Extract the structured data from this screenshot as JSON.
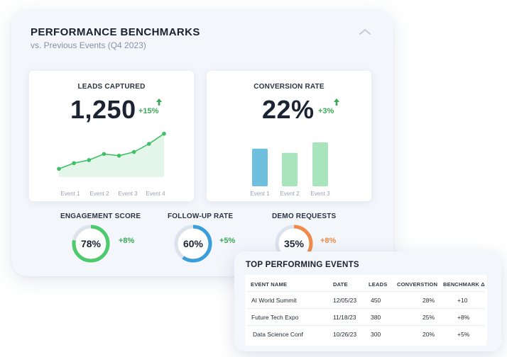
{
  "panel": {
    "title": "PERFORMANCE BENCHMARKS",
    "subtitle": "vs. Previous Events (Q4 2023)"
  },
  "icons": {
    "collapse": "chevron-up-icon",
    "trend": "arrow-up-icon"
  },
  "colors": {
    "positive": "#3aa957",
    "green_line": "#3fbf66",
    "blue_bar": "#6fc0df",
    "green_bar": "#a8e4bc",
    "gauge_green": "#4ccb6d",
    "gauge_blue": "#3a9fd9",
    "gauge_orange": "#f08a4b",
    "gauge_track": "#dde3ec"
  },
  "leads": {
    "title": "LEADS CAPTURED",
    "value": "1,250",
    "delta": "+15%"
  },
  "conversion": {
    "title": "CONVERSION RATE",
    "value": "22%",
    "delta": "+3%"
  },
  "chart_data": [
    {
      "type": "line",
      "title": "LEADS CAPTURED",
      "categories": [
        "Event 1",
        "Event 2",
        "Event 3",
        "Event 4"
      ],
      "x": [
        0,
        0.5,
        1,
        1.5,
        2,
        2.5,
        3,
        3.5
      ],
      "values": [
        16,
        33,
        42,
        60,
        55,
        66,
        90,
        120
      ],
      "ylim": [
        0,
        130
      ]
    },
    {
      "type": "bar",
      "title": "CONVERSION RATE",
      "categories": [
        "Event 1",
        "Event 2",
        "Event 3"
      ],
      "values": [
        18,
        16,
        21
      ],
      "ylim": [
        0,
        22
      ]
    }
  ],
  "gauges": [
    {
      "title": "ENGAGEMENT SCORE",
      "value": "78%",
      "percent": 78,
      "delta": "+8%",
      "color": "#4ccb6d",
      "delta_color": "#3aa957"
    },
    {
      "title": "FOLLOW-UP RATE",
      "value": "60%",
      "percent": 60,
      "delta": "+5%",
      "color": "#3a9fd9",
      "delta_color": "#3aa957"
    },
    {
      "title": "DEMO REQUESTS",
      "value": "35%",
      "percent": 35,
      "delta": "+8%",
      "color": "#f08a4b",
      "delta_color": "#f08a4b"
    }
  ],
  "table": {
    "title": "TOP PERFORMING EVENTS",
    "headers": [
      "EVENT NAME",
      "DATE",
      "LEADS",
      "CONVERSTION",
      "BENCHMARK Δ"
    ],
    "rows": [
      [
        "AI World Summit",
        "12/05/23",
        "450",
        "28%",
        "+10"
      ],
      [
        "Future Tech Expo",
        "11/18/23",
        "380",
        "25%",
        "+8%"
      ],
      [
        "Data Science Conf",
        "10/26/23",
        "300",
        "20%",
        "+5%"
      ]
    ]
  }
}
